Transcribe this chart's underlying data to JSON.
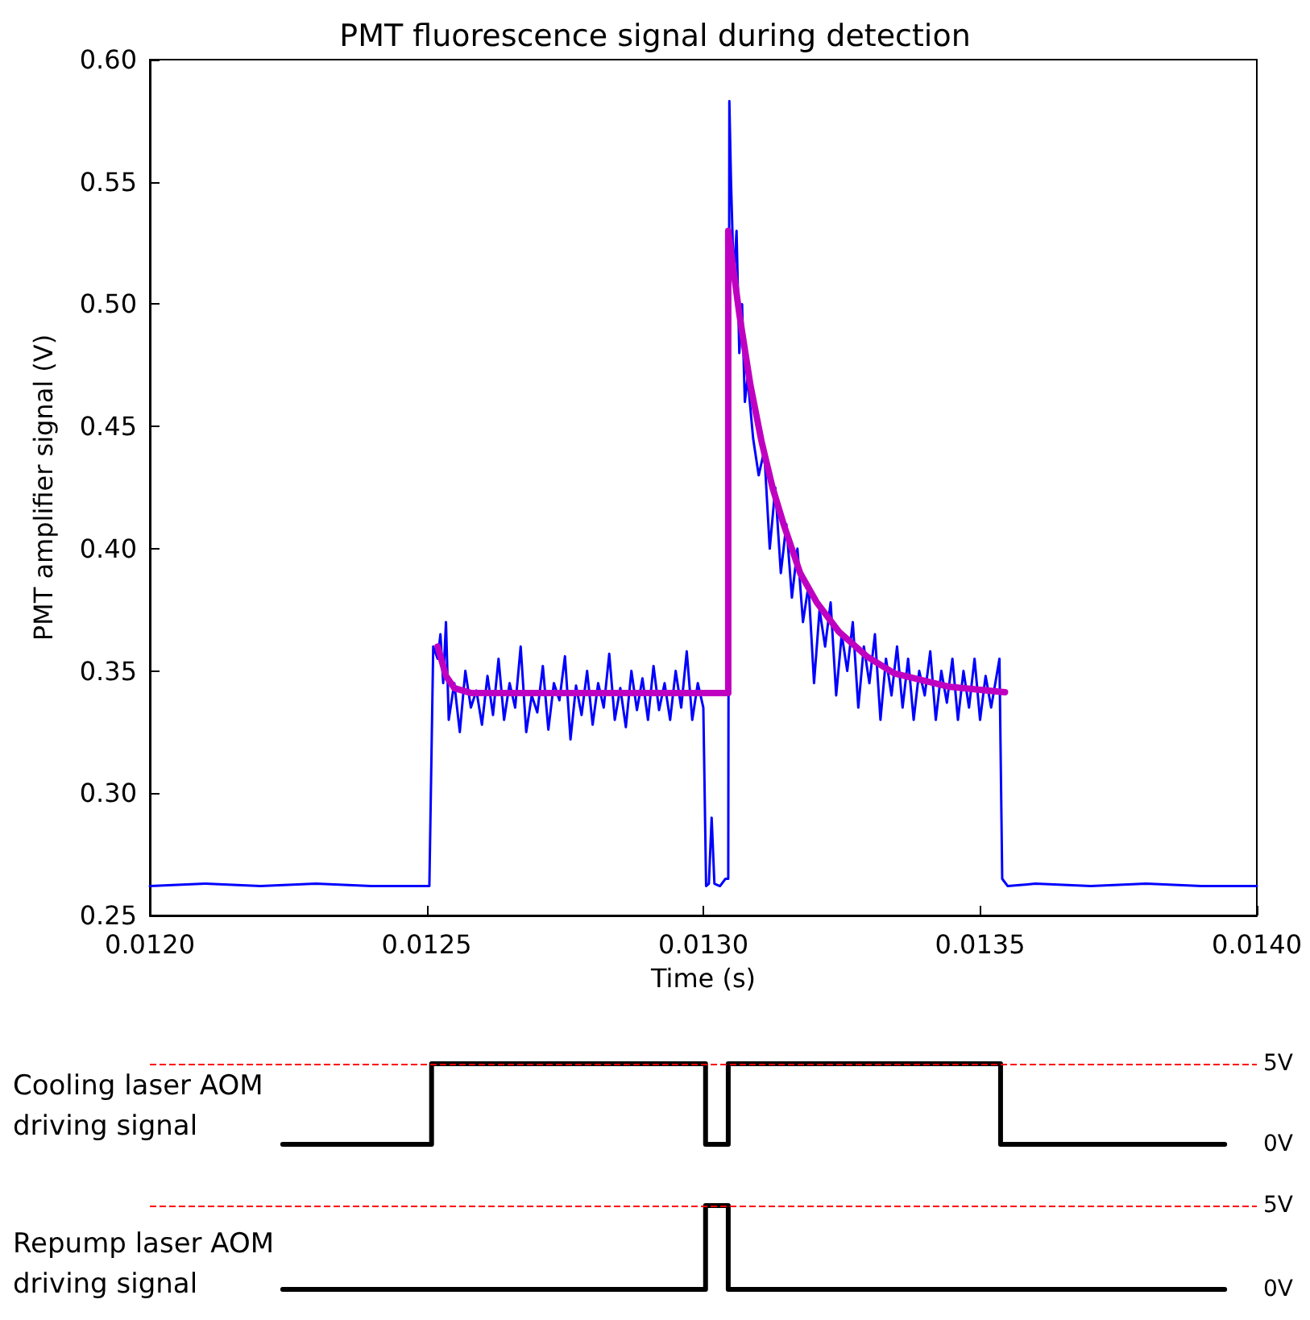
{
  "chart_data": [
    {
      "type": "line",
      "title": "PMT fluorescence signal during detection",
      "xlabel": "Time (s)",
      "ylabel": "PMT amplifier signal (V)",
      "xlim": [
        0.012,
        0.014
      ],
      "xticks": [
        {
          "value": 0.012,
          "label": "0.0120"
        },
        {
          "value": 0.0125,
          "label": "0.0125"
        },
        {
          "value": 0.013,
          "label": "0.0130"
        },
        {
          "value": 0.0135,
          "label": "0.0135"
        },
        {
          "value": 0.014,
          "label": "0.0140"
        }
      ],
      "ylim": [
        0.25,
        0.6
      ],
      "yticks": [
        0.25,
        {
          "value": 0.3,
          "label": "0.30"
        },
        0.35,
        {
          "value": 0.4,
          "label": "0.40"
        },
        0.45,
        {
          "value": 0.5,
          "label": "0.50"
        },
        0.55,
        {
          "value": 0.6,
          "label": "0.60"
        }
      ],
      "grid": false,
      "marker": "none",
      "line_style": "solid",
      "series": [
        {
          "color": "#0000ff",
          "x": [
            0.012,
            0.0121,
            0.0122,
            0.0123,
            0.0124,
            0.0125,
            0.012505,
            0.012512,
            0.01252,
            0.012525,
            0.01253,
            0.012535,
            0.01254,
            0.01255,
            0.01256,
            0.01257,
            0.01258,
            0.01259,
            0.0126,
            0.01261,
            0.01262,
            0.01263,
            0.01264,
            0.01265,
            0.01266,
            0.01267,
            0.01268,
            0.01269,
            0.0127,
            0.01271,
            0.01272,
            0.01273,
            0.01274,
            0.01275,
            0.01276,
            0.01277,
            0.01278,
            0.01279,
            0.0128,
            0.01281,
            0.01282,
            0.01283,
            0.01284,
            0.01285,
            0.01286,
            0.01287,
            0.01288,
            0.01289,
            0.0129,
            0.01291,
            0.01292,
            0.01293,
            0.01294,
            0.01295,
            0.01296,
            0.01297,
            0.01298,
            0.01299,
            0.013,
            0.013005,
            0.01301,
            0.013015,
            0.01302,
            0.01303,
            0.01304,
            0.013045,
            0.013047,
            0.01305,
            0.013055,
            0.01306,
            0.013065,
            0.01307,
            0.013075,
            0.01308,
            0.01309,
            0.0131,
            0.01311,
            0.01312,
            0.01313,
            0.01314,
            0.01315,
            0.01316,
            0.01317,
            0.01318,
            0.01319,
            0.0132,
            0.01321,
            0.01322,
            0.01323,
            0.01324,
            0.01325,
            0.01326,
            0.01327,
            0.01328,
            0.01329,
            0.0133,
            0.01331,
            0.01332,
            0.01333,
            0.01334,
            0.01335,
            0.01336,
            0.01337,
            0.01338,
            0.01339,
            0.0134,
            0.01341,
            0.01342,
            0.01343,
            0.01344,
            0.01345,
            0.01346,
            0.01347,
            0.01348,
            0.01349,
            0.0135,
            0.01351,
            0.01352,
            0.013535,
            0.01354,
            0.01355,
            0.0136,
            0.0137,
            0.0138,
            0.0139,
            0.014
          ],
          "values": [
            0.262,
            0.263,
            0.262,
            0.263,
            0.262,
            0.262,
            0.262,
            0.36,
            0.355,
            0.365,
            0.345,
            0.37,
            0.33,
            0.345,
            0.325,
            0.35,
            0.335,
            0.342,
            0.328,
            0.348,
            0.332,
            0.355,
            0.33,
            0.345,
            0.335,
            0.36,
            0.325,
            0.34,
            0.333,
            0.352,
            0.326,
            0.345,
            0.338,
            0.356,
            0.322,
            0.344,
            0.332,
            0.35,
            0.328,
            0.345,
            0.335,
            0.357,
            0.33,
            0.343,
            0.327,
            0.35,
            0.334,
            0.347,
            0.33,
            0.352,
            0.334,
            0.345,
            0.33,
            0.35,
            0.335,
            0.358,
            0.33,
            0.345,
            0.335,
            0.262,
            0.263,
            0.29,
            0.263,
            0.262,
            0.265,
            0.265,
            0.583,
            0.55,
            0.51,
            0.53,
            0.48,
            0.5,
            0.46,
            0.47,
            0.445,
            0.43,
            0.44,
            0.4,
            0.425,
            0.39,
            0.41,
            0.38,
            0.4,
            0.37,
            0.385,
            0.345,
            0.375,
            0.36,
            0.378,
            0.34,
            0.365,
            0.35,
            0.37,
            0.335,
            0.36,
            0.345,
            0.365,
            0.33,
            0.355,
            0.34,
            0.36,
            0.335,
            0.355,
            0.33,
            0.35,
            0.34,
            0.358,
            0.33,
            0.35,
            0.337,
            0.355,
            0.33,
            0.35,
            0.335,
            0.355,
            0.33,
            0.348,
            0.335,
            0.355,
            0.265,
            0.262,
            0.263,
            0.262,
            0.263,
            0.262,
            0.262
          ]
        },
        {
          "color": "#c000c0",
          "x": [
            0.01252,
            0.012535,
            0.01255,
            0.01258,
            0.013045,
            0.013045,
            0.013065,
            0.013085,
            0.013105,
            0.013125,
            0.013145,
            0.013175,
            0.013205,
            0.013245,
            0.013295,
            0.013345,
            0.013445,
            0.013545
          ],
          "values": [
            0.36,
            0.348,
            0.343,
            0.341,
            0.341,
            0.53,
            0.496,
            0.467,
            0.444,
            0.425,
            0.41,
            0.39,
            0.378,
            0.366,
            0.356,
            0.349,
            0.3435,
            0.3413
          ]
        }
      ]
    },
    {
      "type": "step",
      "ylabel": "Cooling laser AOM driving signal",
      "xlim": [
        0.012,
        0.014
      ],
      "ylim": [
        0,
        5
      ],
      "yticks": [
        {
          "value": 0,
          "label": "0V"
        },
        {
          "value": 5,
          "label": "5V"
        }
      ],
      "tick_labels": "y",
      "ref_lines": [
        {
          "axis": "y",
          "value": 5,
          "color": "#ff0000",
          "line_style": "dashed"
        }
      ],
      "series": [
        {
          "color": "#000000",
          "x": [
            0.01224,
            0.012509,
            0.013004,
            0.013045,
            0.013537,
            0.013942
          ],
          "values": [
            0,
            5,
            0,
            5,
            0,
            0
          ]
        }
      ]
    },
    {
      "type": "step",
      "ylabel": "Repump laser AOM driving signal",
      "xlim": [
        0.012,
        0.014
      ],
      "ylim": [
        0,
        5
      ],
      "yticks": [
        {
          "value": 0,
          "label": "0V"
        },
        {
          "value": 5,
          "label": "5V"
        }
      ],
      "tick_labels": "y",
      "ref_lines": [
        {
          "axis": "y",
          "value": 5,
          "color": "#ff0000",
          "line_style": "dashed"
        }
      ],
      "series": [
        {
          "color": "#000000",
          "x": [
            0.01224,
            0.013004,
            0.013045,
            0.013942
          ],
          "values": [
            0,
            5,
            0,
            0
          ]
        }
      ]
    }
  ]
}
